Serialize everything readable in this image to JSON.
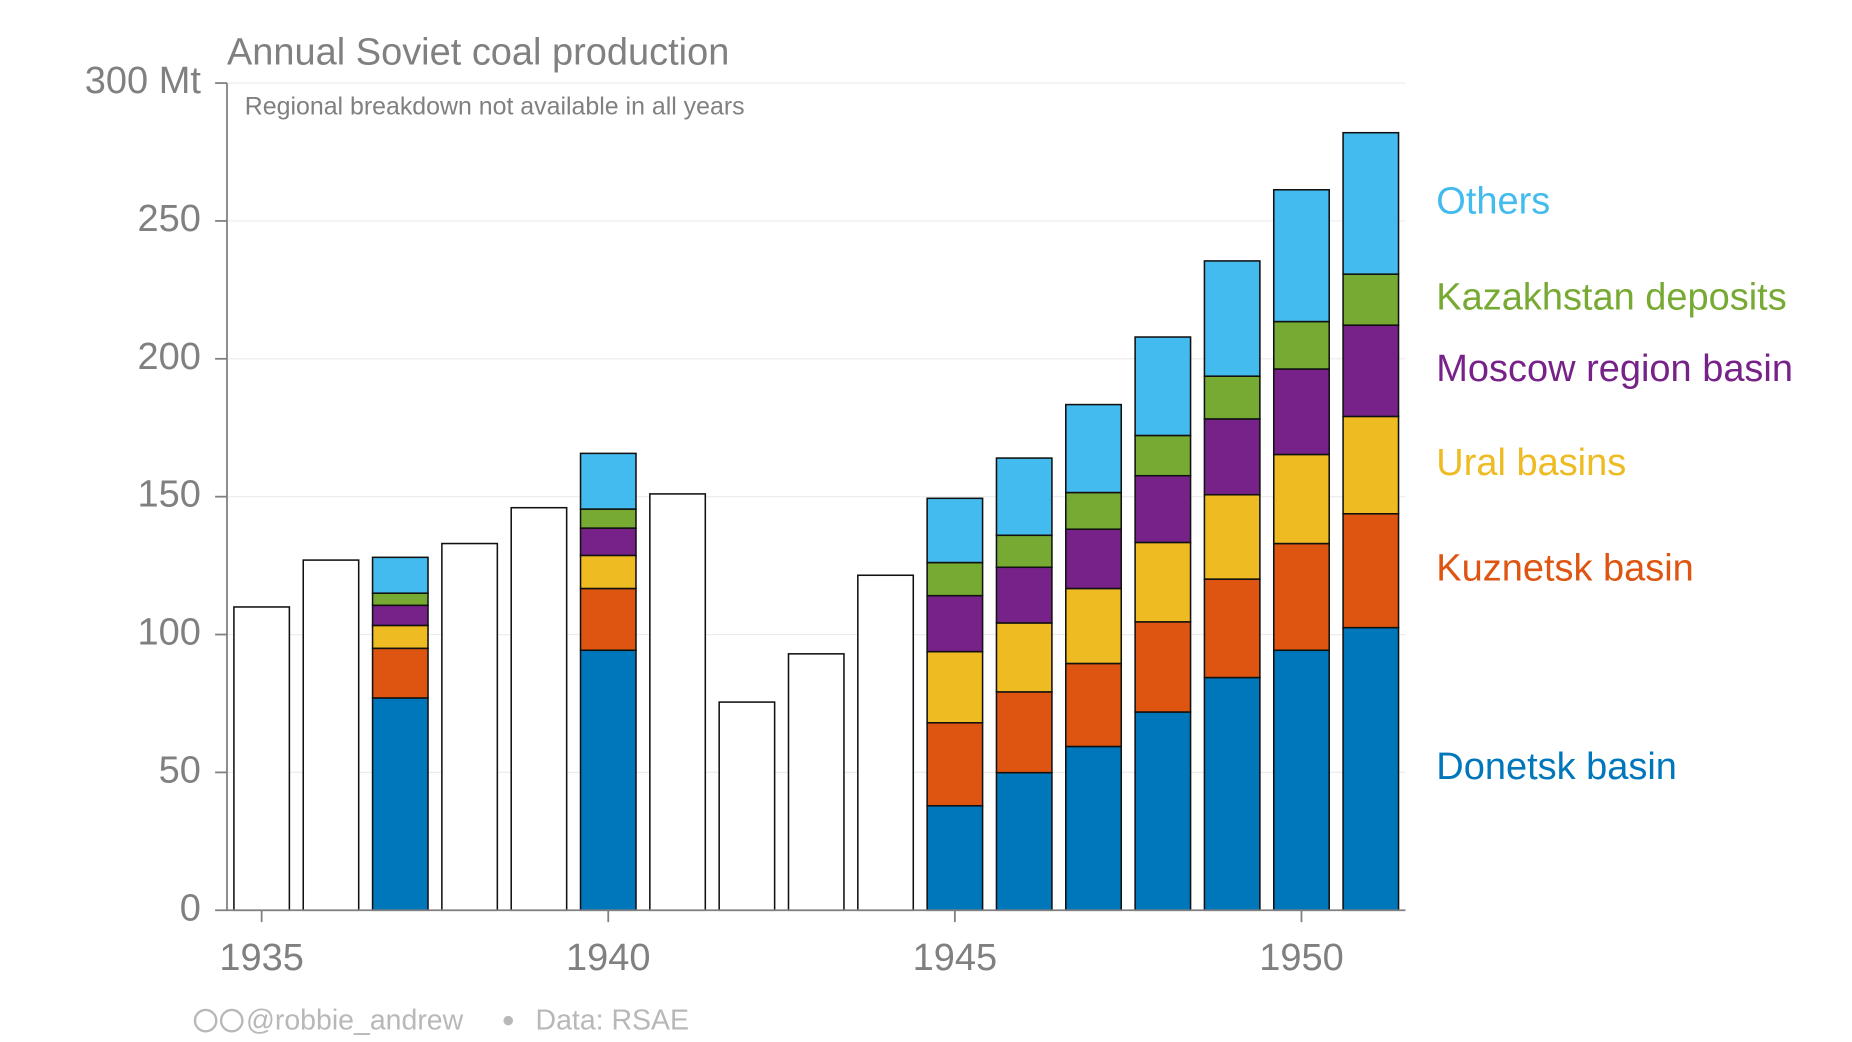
{
  "chart_data": {
    "type": "bar",
    "stacked": true,
    "title": "Annual Soviet coal production",
    "subtitle": "Regional breakdown not available in all years",
    "x": [
      1935,
      1936,
      1937,
      1938,
      1939,
      1940,
      1941,
      1942,
      1943,
      1944,
      1945,
      1946,
      1947,
      1948,
      1949,
      1950,
      1951
    ],
    "xlim": [
      1934.5,
      1951.5
    ],
    "xticks": [
      1935,
      1940,
      1945,
      1950
    ],
    "ylim": [
      0,
      300
    ],
    "yticks": [
      0,
      50,
      100,
      150,
      200,
      250,
      {
        "value": 300,
        "label": "300 Mt"
      }
    ],
    "grid": true,
    "legend": "right",
    "series": [
      {
        "color": "#ffffff",
        "values": [
          110,
          127,
          null,
          133,
          146,
          null,
          151,
          75.5,
          93,
          121.5,
          null,
          null,
          null,
          null,
          null,
          null,
          null
        ]
      },
      {
        "name": "Donetsk basin",
        "color": "#0077bb",
        "values": [
          null,
          null,
          77,
          null,
          null,
          94.3,
          null,
          null,
          null,
          null,
          37.9,
          49.9,
          59.4,
          71.9,
          84.4,
          94.3,
          102.5
        ]
      },
      {
        "name": "Kuznetsk basin",
        "color": "#dd5511",
        "values": [
          null,
          null,
          18,
          null,
          null,
          22.4,
          null,
          null,
          null,
          null,
          30.1,
          29.3,
          30.1,
          32.7,
          35.7,
          38.7,
          41.3
        ]
      },
      {
        "name": "Ural basins",
        "color": "#eebb22",
        "values": [
          null,
          null,
          8.3,
          null,
          null,
          12,
          null,
          null,
          null,
          null,
          25.8,
          25,
          27.2,
          28.8,
          30.6,
          32.3,
          35.3
        ]
      },
      {
        "name": "Moscow region basin",
        "color": "#772288",
        "values": [
          null,
          null,
          7.3,
          null,
          null,
          9.9,
          null,
          null,
          null,
          null,
          20.3,
          20.2,
          21.5,
          24.2,
          27.5,
          31,
          33.1
        ]
      },
      {
        "name": "Kazakhstan deposits",
        "color": "#77aa33",
        "values": [
          null,
          null,
          4.4,
          null,
          null,
          6.9,
          null,
          null,
          null,
          null,
          12,
          11.6,
          13.3,
          14.6,
          15.5,
          17.2,
          18.5
        ]
      },
      {
        "name": "Others",
        "color": "#44bbee",
        "values": [
          null,
          null,
          13,
          null,
          null,
          20.2,
          null,
          null,
          null,
          null,
          23.3,
          28,
          31.9,
          35.7,
          41.8,
          47.8,
          51.3
        ]
      }
    ]
  },
  "footer": {
    "credit": "@robbie_andrew",
    "source": "Data: RSAE"
  }
}
